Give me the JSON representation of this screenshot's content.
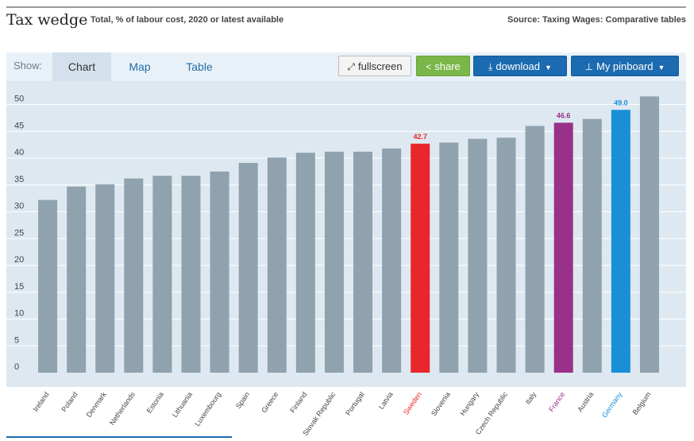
{
  "header": {
    "title": "Tax wedge",
    "subtitle": "Total, % of labour cost, 2020 or latest available",
    "source": "Source: Taxing Wages: Comparative tables"
  },
  "toolbar": {
    "show_label": "Show:",
    "tabs": [
      {
        "label": "Chart",
        "active": true
      },
      {
        "label": "Map",
        "active": false
      },
      {
        "label": "Table",
        "active": false
      }
    ],
    "fullscreen_label": "fullscreen",
    "share_label": "share",
    "download_label": "download",
    "pinboard_label": "My pinboard",
    "icons": {
      "fullscreen": "expand-arrows-icon",
      "share": "share-icon",
      "download": "download-tray-icon",
      "pinboard": "pushpin-icon",
      "dropdown": "caret-down-icon"
    }
  },
  "colors": {
    "default_bar": "#8fa2ae",
    "Sweden": "#e8262b",
    "France": "#993189",
    "Germany": "#1a8fd8",
    "tick_label": "#444444",
    "plot_background": "#dde8f0",
    "gridline": "#ffffff"
  },
  "chart_data": {
    "type": "bar",
    "title": "Tax wedge",
    "subtitle": "Total, % of labour cost, 2020 or latest available",
    "xlabel": "",
    "ylabel": "",
    "ylim": [
      0,
      50
    ],
    "yticks": [
      0,
      5,
      10,
      15,
      20,
      25,
      30,
      35,
      40,
      45,
      50
    ],
    "grid": true,
    "legend": "none",
    "categories": [
      "Ireland",
      "Poland",
      "Denmark",
      "Netherlands",
      "Estonia",
      "Lithuania",
      "Luxembourg",
      "Spain",
      "Greece",
      "Finland",
      "Slovak Republic",
      "Portugal",
      "Latvia",
      "Sweden",
      "Slovenia",
      "Hungary",
      "Czech Republic",
      "Italy",
      "France",
      "Austria",
      "Germany",
      "Belgium"
    ],
    "values": [
      32.2,
      34.7,
      35.1,
      36.2,
      36.7,
      36.7,
      37.5,
      39.1,
      40.1,
      41.0,
      41.2,
      41.2,
      41.8,
      42.7,
      42.9,
      43.6,
      43.8,
      46.0,
      46.6,
      47.3,
      49.0,
      51.5
    ],
    "highlighted": [
      "Sweden",
      "France",
      "Germany"
    ],
    "data_labels": [
      {
        "category": "Sweden",
        "label": "42.7"
      },
      {
        "category": "France",
        "label": "46.6"
      },
      {
        "category": "Germany",
        "label": "49.0"
      }
    ]
  }
}
